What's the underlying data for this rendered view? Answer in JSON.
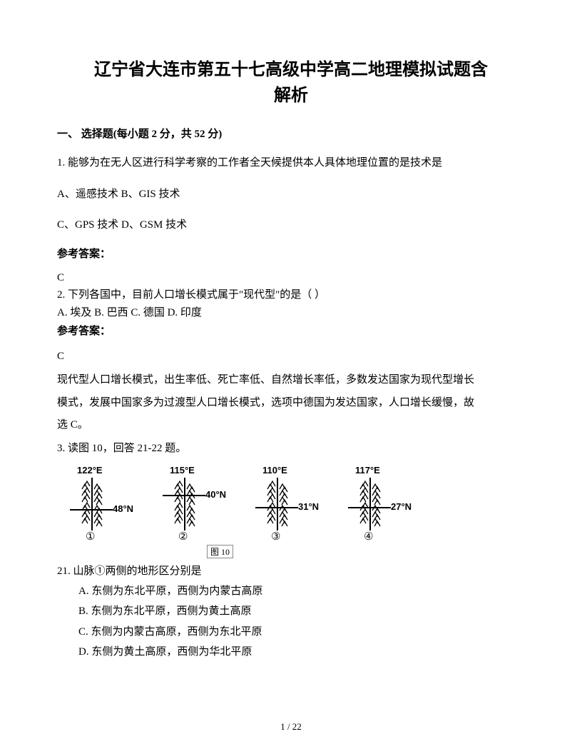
{
  "title_line1": "辽宁省大连市第五十七高级中学高二地理模拟试题含",
  "title_line2": "解析",
  "section1": "一、 选择题(每小题 2 分，共 52 分)",
  "q1": {
    "text": "1. 能够为在无人区进行科学考察的工作者全天候提供本人具体地理位置的是技术是",
    "optAB": "A、遥感技术   B、GIS 技术",
    "optCD": "C、GPS 技术   D、GSM 技术",
    "ansLabel": "参考答案：",
    "ans": "C"
  },
  "q2": {
    "text": "2. 下列各国中，目前人口增长模式属于\"现代型\"的是（        ）",
    "opts": "A.  埃及        B.  巴西        C.  德国        D.  印度",
    "ansLabel": "参考答案：",
    "ans": "C",
    "expl1": "现代型人口增长模式，出生率低、死亡率低、自然增长率低，多数发达国家为现代型增长",
    "expl2": "模式，发展中国家多为过渡型人口增长模式，选项中德国为发达国家，人口增长缓慢，故",
    "expl3": "选 C。"
  },
  "q3": {
    "intro": "3. 读图 10，回答 21-22 题。",
    "diagrams": [
      {
        "lon": "122°E",
        "lat": "48°N",
        "num": "①",
        "latTop": 55,
        "horizTop": 62
      },
      {
        "lon": "115°E",
        "lat": "40°N",
        "num": "②",
        "latTop": 35,
        "horizTop": 42
      },
      {
        "lon": "110°E",
        "lat": "31°N",
        "num": "③",
        "latTop": 52,
        "horizTop": 59
      },
      {
        "lon": "117°E",
        "lat": "27°N",
        "num": "④",
        "latTop": 52,
        "horizTop": 59
      }
    ],
    "caption": "图 10",
    "subq": "21. 山脉①两侧的地形区分别是",
    "optA": "A.  东侧为东北平原，西侧为内蒙古高原",
    "optB": "B.  东侧为东北平原，西侧为黄土高原",
    "optC": "C.  东侧为内蒙古高原，西侧为东北平原",
    "optD": "D.  东侧为黄土高原，西侧为华北平原"
  },
  "footer": "1 / 22",
  "colors": {
    "text": "#000000",
    "bg": "#ffffff"
  }
}
